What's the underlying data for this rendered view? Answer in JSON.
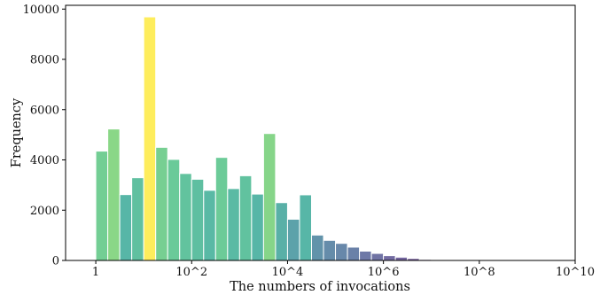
{
  "chart_data": {
    "type": "bar",
    "title": "",
    "xlabel": "The numbers of invocations",
    "ylabel": "Frequency",
    "x_scale": "log10",
    "xlim": [
      1,
      10000000000
    ],
    "ylim": [
      0,
      10000
    ],
    "x_ticks": [
      {
        "value": 1,
        "label": "1"
      },
      {
        "value": 100,
        "label": "10^2"
      },
      {
        "value": 10000,
        "label": "10^4"
      },
      {
        "value": 1000000,
        "label": "10^6"
      },
      {
        "value": 100000000,
        "label": "10^8"
      },
      {
        "value": 10000000000,
        "label": "10^10"
      }
    ],
    "y_ticks": [
      0,
      2000,
      4000,
      6000,
      8000,
      10000
    ],
    "bin_edges_log10": [
      0,
      0.25,
      0.5,
      0.75,
      1.0,
      1.25,
      1.5,
      1.75,
      2.0,
      2.25,
      2.5,
      2.75,
      3.0,
      3.25,
      3.5,
      3.75,
      4.0,
      4.25,
      4.5,
      4.75,
      5.0,
      5.25,
      5.5,
      5.75,
      6.0,
      6.25,
      6.5,
      6.75,
      7.0,
      7.25
    ],
    "values": [
      4350,
      5230,
      2620,
      3290,
      9690,
      4500,
      4020,
      3460,
      3230,
      2790,
      4100,
      2860,
      3370,
      2640,
      5050,
      2300,
      1640,
      2610,
      1010,
      800,
      680,
      530,
      370,
      280,
      190,
      130,
      80,
      40,
      20
    ],
    "grid": false,
    "legend": "none",
    "colormap": "viridis"
  }
}
